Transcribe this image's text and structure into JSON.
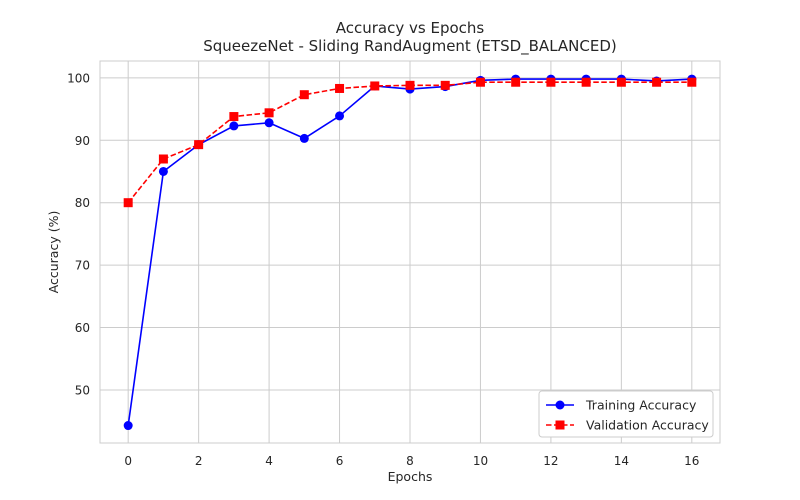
{
  "chart_data": {
    "type": "line",
    "title": "Accuracy vs Epochs",
    "subtitle": "SqueezeNet - Sliding RandAugment (ETSD_BALANCED)",
    "xlabel": "Epochs",
    "ylabel": "Accuracy (%)",
    "xlim": [
      -0.8,
      16.8
    ],
    "ylim": [
      41.5,
      102.7
    ],
    "xticks": [
      0,
      2,
      4,
      6,
      8,
      10,
      12,
      14,
      16
    ],
    "yticks": [
      50,
      60,
      70,
      80,
      90,
      100
    ],
    "grid": true,
    "legend_position": "lower-right",
    "x": [
      0,
      1,
      2,
      3,
      4,
      5,
      6,
      7,
      8,
      9,
      10,
      11,
      12,
      13,
      14,
      15,
      16
    ],
    "series": [
      {
        "name": "Training Accuracy",
        "color": "#0000ff",
        "line_style": "solid",
        "marker": "circle",
        "values": [
          44.3,
          85.0,
          89.3,
          92.3,
          92.8,
          90.3,
          93.9,
          98.7,
          98.2,
          98.6,
          99.6,
          99.8,
          99.8,
          99.8,
          99.8,
          99.5,
          99.8
        ]
      },
      {
        "name": "Validation Accuracy",
        "color": "#ff0000",
        "line_style": "dashed",
        "marker": "square",
        "values": [
          80.0,
          87.0,
          89.3,
          93.8,
          94.4,
          97.3,
          98.3,
          98.7,
          98.8,
          98.8,
          99.3,
          99.3,
          99.3,
          99.3,
          99.3,
          99.3,
          99.3
        ]
      }
    ]
  }
}
